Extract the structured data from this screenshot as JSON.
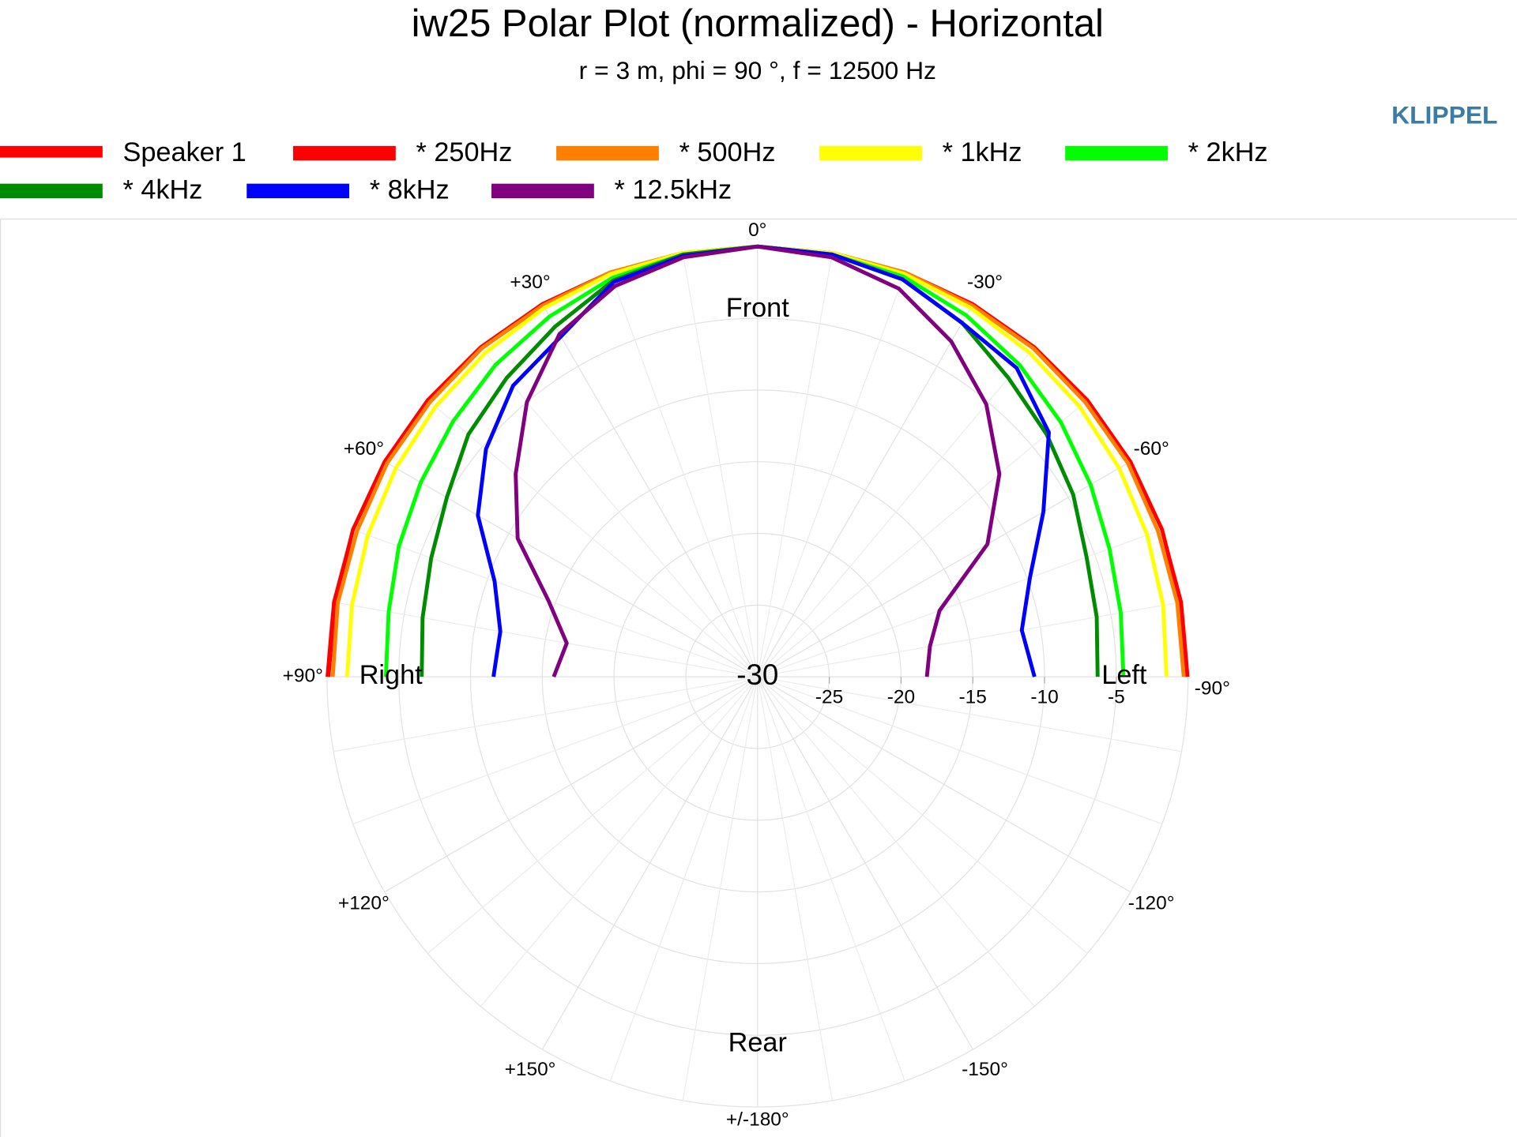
{
  "chart_data": {
    "type": "polar",
    "title": "iw25 Polar Plot (normalized) - Horizontal",
    "subtitle": "r = 3 m, phi = 90 °, f = 12500 Hz",
    "brand": "KLIPPEL",
    "annotations": [
      "Front",
      "Rear",
      "Right",
      "Left"
    ],
    "x": [
      -90,
      -80,
      -70,
      -60,
      -50,
      -40,
      -30,
      -20,
      -10,
      0,
      10,
      20,
      30,
      40,
      50,
      60,
      70,
      80,
      90
    ],
    "xticks": [
      {
        "value": 0,
        "label": "0°"
      },
      {
        "value": 30,
        "label": "+30°"
      },
      {
        "value": 60,
        "label": "+60°"
      },
      {
        "value": 90,
        "label": "+90°"
      },
      {
        "value": 120,
        "label": "+120°"
      },
      {
        "value": 150,
        "label": "+150°"
      },
      {
        "value": 180,
        "label": "+/-180°"
      },
      {
        "value": -150,
        "label": "-150°"
      },
      {
        "value": -120,
        "label": "-120°"
      },
      {
        "value": -90,
        "label": "-90°"
      },
      {
        "value": -60,
        "label": "-60°"
      },
      {
        "value": -30,
        "label": "-30°"
      }
    ],
    "rlim": [
      -30,
      0
    ],
    "rticks": [
      -30,
      -25,
      -20,
      -15,
      -10,
      -5
    ],
    "grid": true,
    "series": [
      {
        "name": "Speaker 1",
        "color": "#ff0000",
        "values": [
          0,
          0,
          0,
          0,
          0,
          0,
          0,
          0,
          0,
          0,
          0,
          0,
          0,
          0,
          0,
          0,
          0,
          0,
          0
        ]
      },
      {
        "name": "* 250Hz",
        "color": "#ff0000",
        "values": [
          -0.1,
          -0.1,
          0,
          0,
          0,
          0,
          0,
          0,
          0,
          0,
          0,
          0,
          0,
          0,
          0,
          0,
          0,
          -0.1,
          -0.1
        ]
      },
      {
        "name": "* 500Hz",
        "color": "#ff8000",
        "values": [
          -0.3,
          -0.3,
          -0.3,
          -0.2,
          -0.2,
          -0.1,
          -0.1,
          0,
          0,
          0,
          0,
          0,
          -0.1,
          -0.1,
          -0.2,
          -0.2,
          -0.3,
          -0.3,
          -0.4
        ]
      },
      {
        "name": "* 1kHz",
        "color": "#ffff00",
        "values": [
          -1.5,
          -1.3,
          -1.1,
          -0.9,
          -0.7,
          -0.5,
          -0.3,
          -0.1,
          0,
          0,
          0,
          -0.1,
          -0.3,
          -0.5,
          -0.7,
          -0.9,
          -1.1,
          -1.3,
          -1.4
        ]
      },
      {
        "name": "* 2kHz",
        "color": "#00ff00",
        "values": [
          -4.5,
          -4.3,
          -3.9,
          -3.2,
          -2.4,
          -1.6,
          -0.9,
          -0.3,
          -0.1,
          0,
          -0.1,
          -0.4,
          -1.0,
          -1.6,
          -2.3,
          -2.9,
          -3.4,
          -3.9,
          -4.1
        ]
      },
      {
        "name": "* 4kHz",
        "color": "#008c00",
        "values": [
          -6.3,
          -6.0,
          -5.6,
          -4.6,
          -3.7,
          -2.8,
          -1.5,
          -0.5,
          -0.1,
          0,
          -0.1,
          -0.6,
          -1.8,
          -2.8,
          -3.7,
          -5.0,
          -5.8,
          -6.3,
          -6.6
        ]
      },
      {
        "name": "* 8kHz",
        "color": "#0000ff",
        "values": [
          -10.7,
          -11.3,
          -9.8,
          -7.0,
          -3.5,
          -1.9,
          -1.5,
          -0.5,
          -0.1,
          0,
          -0.2,
          -0.7,
          -2.6,
          -3.5,
          -5.3,
          -7.5,
          -10.5,
          -11.8,
          -11.6
        ]
      },
      {
        "name": "* 12.5kHz",
        "color": "#800080",
        "values": [
          -18.2,
          -17.8,
          -16.5,
          -11.5,
          -8.0,
          -5.2,
          -3.0,
          -1.2,
          -0.3,
          0,
          -0.3,
          -1.0,
          -2.4,
          -5.0,
          -8.0,
          -10.7,
          -14.5,
          -16.5,
          -15.8
        ]
      }
    ]
  }
}
